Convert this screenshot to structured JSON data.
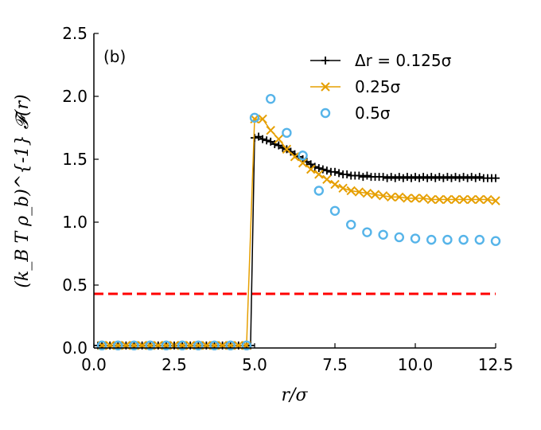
{
  "chart_data": {
    "type": "line",
    "panel_label": "(b)",
    "xlabel": "r/σ",
    "ylabel": "(k_B T ρ_b)^{-1} 𝓕(r)",
    "xlim": [
      0,
      12.5
    ],
    "ylim": [
      0,
      2.5
    ],
    "xticks": [
      0.0,
      2.5,
      5.0,
      7.5,
      10.0,
      12.5
    ],
    "xtick_labels": [
      "0.0",
      "2.5",
      "5.0",
      "7.5",
      "10.0",
      "12.5"
    ],
    "yticks": [
      0.0,
      0.5,
      1.0,
      1.5,
      2.0,
      2.5
    ],
    "ytick_labels": [
      "0.0",
      "0.5",
      "1.0",
      "1.5",
      "2.0",
      "2.5"
    ],
    "legend_position": "top-right",
    "series": [
      {
        "name": "Δr = 0.125σ",
        "color": "#000000",
        "marker": "plus",
        "x": [
          0.125,
          0.25,
          0.375,
          0.5,
          0.625,
          0.75,
          0.875,
          1.0,
          1.125,
          1.25,
          1.375,
          1.5,
          1.625,
          1.75,
          1.875,
          2.0,
          2.125,
          2.25,
          2.375,
          2.5,
          2.625,
          2.75,
          2.875,
          3.0,
          3.125,
          3.25,
          3.375,
          3.5,
          3.625,
          3.75,
          3.875,
          4.0,
          4.125,
          4.25,
          4.375,
          4.5,
          4.625,
          4.75,
          4.875,
          5.0,
          5.125,
          5.25,
          5.375,
          5.5,
          5.625,
          5.75,
          5.875,
          6.0,
          6.125,
          6.25,
          6.375,
          6.5,
          6.625,
          6.75,
          6.875,
          7.0,
          7.125,
          7.25,
          7.375,
          7.5,
          7.625,
          7.75,
          7.875,
          8.0,
          8.125,
          8.25,
          8.375,
          8.5,
          8.625,
          8.75,
          8.875,
          9.0,
          9.125,
          9.25,
          9.375,
          9.5,
          9.625,
          9.75,
          9.875,
          10.0,
          10.125,
          10.25,
          10.375,
          10.5,
          10.625,
          10.75,
          10.875,
          11.0,
          11.125,
          11.25,
          11.375,
          11.5,
          11.625,
          11.75,
          11.875,
          12.0,
          12.125,
          12.25,
          12.375,
          12.5
        ],
        "y": [
          0.02,
          0.02,
          0.02,
          0.02,
          0.02,
          0.02,
          0.02,
          0.02,
          0.02,
          0.02,
          0.02,
          0.02,
          0.02,
          0.02,
          0.02,
          0.02,
          0.02,
          0.02,
          0.02,
          0.02,
          0.02,
          0.02,
          0.02,
          0.02,
          0.02,
          0.02,
          0.02,
          0.02,
          0.02,
          0.02,
          0.02,
          0.02,
          0.02,
          0.02,
          0.02,
          0.02,
          0.02,
          0.02,
          0.02,
          1.67,
          1.68,
          1.66,
          1.65,
          1.64,
          1.62,
          1.61,
          1.59,
          1.58,
          1.56,
          1.54,
          1.52,
          1.5,
          1.48,
          1.46,
          1.44,
          1.43,
          1.42,
          1.41,
          1.4,
          1.4,
          1.39,
          1.38,
          1.38,
          1.37,
          1.37,
          1.37,
          1.36,
          1.37,
          1.36,
          1.36,
          1.36,
          1.36,
          1.35,
          1.36,
          1.35,
          1.36,
          1.35,
          1.36,
          1.35,
          1.36,
          1.35,
          1.36,
          1.35,
          1.36,
          1.35,
          1.36,
          1.35,
          1.36,
          1.35,
          1.36,
          1.35,
          1.36,
          1.35,
          1.36,
          1.35,
          1.36,
          1.35,
          1.35,
          1.35,
          1.35
        ]
      },
      {
        "name": "0.25σ",
        "color": "#E69F00",
        "marker": "x",
        "x": [
          0.25,
          0.5,
          0.75,
          1.0,
          1.25,
          1.5,
          1.75,
          2.0,
          2.25,
          2.5,
          2.75,
          3.0,
          3.25,
          3.5,
          3.75,
          4.0,
          4.25,
          4.5,
          4.75,
          5.0,
          5.25,
          5.5,
          5.75,
          6.0,
          6.25,
          6.5,
          6.75,
          7.0,
          7.25,
          7.5,
          7.75,
          8.0,
          8.25,
          8.5,
          8.75,
          9.0,
          9.25,
          9.5,
          9.75,
          10.0,
          10.25,
          10.5,
          10.75,
          11.0,
          11.25,
          11.5,
          11.75,
          12.0,
          12.25,
          12.5
        ],
        "y": [
          0.02,
          0.02,
          0.02,
          0.02,
          0.02,
          0.02,
          0.02,
          0.02,
          0.02,
          0.02,
          0.02,
          0.02,
          0.02,
          0.02,
          0.02,
          0.02,
          0.02,
          0.02,
          0.02,
          1.82,
          1.82,
          1.73,
          1.66,
          1.58,
          1.52,
          1.47,
          1.42,
          1.38,
          1.34,
          1.3,
          1.27,
          1.25,
          1.24,
          1.23,
          1.22,
          1.21,
          1.2,
          1.2,
          1.19,
          1.19,
          1.19,
          1.18,
          1.18,
          1.18,
          1.18,
          1.18,
          1.18,
          1.18,
          1.18,
          1.17
        ]
      },
      {
        "name": "0.5σ",
        "color": "#56B4E9",
        "marker": "circle",
        "x": [
          0.25,
          0.75,
          1.25,
          1.75,
          2.25,
          2.75,
          3.25,
          3.75,
          4.25,
          4.75,
          5.0,
          5.5,
          6.0,
          6.5,
          7.0,
          7.5,
          8.0,
          8.5,
          9.0,
          9.5,
          10.0,
          10.5,
          11.0,
          11.5,
          12.0,
          12.5
        ],
        "y": [
          0.02,
          0.02,
          0.02,
          0.02,
          0.02,
          0.02,
          0.02,
          0.02,
          0.02,
          0.02,
          1.83,
          1.98,
          1.71,
          1.53,
          1.25,
          1.09,
          0.98,
          0.92,
          0.9,
          0.88,
          0.87,
          0.86,
          0.86,
          0.86,
          0.86,
          0.85
        ]
      }
    ],
    "reference_line": {
      "y": 0.43,
      "color": "#ff0000",
      "style": "dashed"
    }
  }
}
